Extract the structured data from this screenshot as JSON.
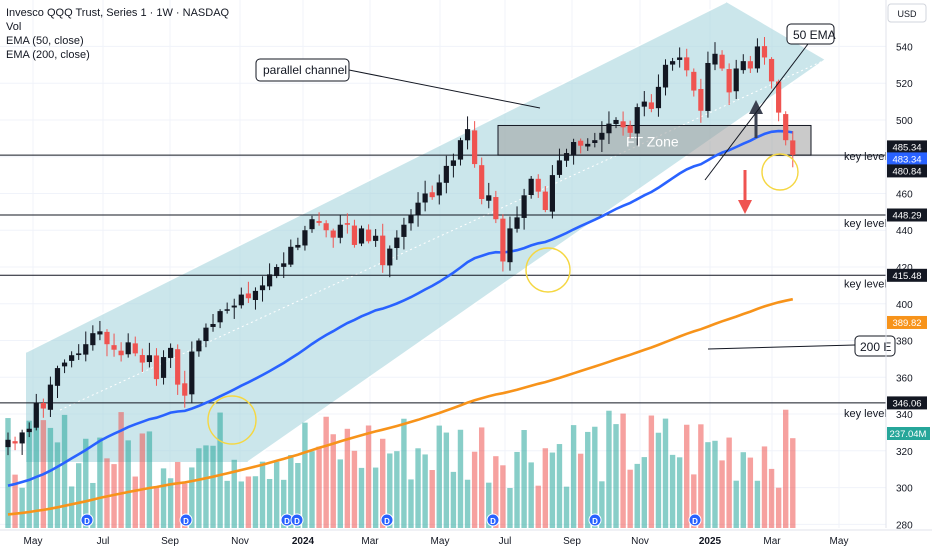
{
  "header": {
    "title": "Invesco QQQ Trust, Series 1 · 1W · NASDAQ",
    "vol_label": "Vol",
    "ema50_label": "EMA (50, close)",
    "ema200_label": "EMA (200, close)",
    "currency": "USD"
  },
  "annotations": {
    "parallel_channel": "parallel channel",
    "ema50": "50 EMA",
    "ema200": "200 E",
    "zone": "FT Zone",
    "key_level": "key level"
  },
  "colors": {
    "up": "#26a69a",
    "down": "#ef5350",
    "ema50": "#2962ff",
    "ema200": "#f7931a",
    "channel": "#a9d6dd",
    "background": "#ffffff"
  },
  "chart_data": {
    "type": "candlestick",
    "interval": "1W",
    "x_axis_labels": [
      "May",
      "Jul",
      "Sep",
      "Nov",
      "2024",
      "Mar",
      "May",
      "Jul",
      "Sep",
      "Nov",
      "2025",
      "Mar",
      "May"
    ],
    "y_axis_ticks": [
      280,
      300,
      320,
      340,
      360,
      380,
      400,
      420,
      440,
      460,
      480,
      500,
      520,
      540
    ],
    "ylim": [
      278,
      562
    ],
    "price_tags": [
      {
        "value": 485.34,
        "label": "485.34",
        "color": "#131722"
      },
      {
        "value": 483.34,
        "label": "483.34",
        "color": "#2962ff"
      },
      {
        "value": 480.84,
        "label": "480.84",
        "color": "#131722"
      },
      {
        "value": 448.29,
        "label": "448.29",
        "color": "#131722"
      },
      {
        "value": 415.48,
        "label": "415.48",
        "color": "#131722"
      },
      {
        "value": 389.82,
        "label": "389.82",
        "color": "#f7931a"
      },
      {
        "value": 346.06,
        "label": "346.06",
        "color": "#131722"
      }
    ],
    "volume_tag": "237.04M",
    "key_levels": [
      480.84,
      448.29,
      415.48,
      346.06
    ],
    "zone": [
      480.84,
      497
    ],
    "closes": [
      326,
      324,
      330,
      332,
      346,
      343,
      356,
      365,
      368,
      372,
      373,
      378,
      384,
      385,
      378,
      375,
      372,
      379,
      373,
      368,
      372,
      359,
      371,
      376,
      356,
      350,
      374,
      380,
      387,
      389,
      396,
      397,
      399,
      405,
      403,
      407,
      410,
      416,
      420,
      422,
      431,
      432,
      440,
      446,
      444,
      440,
      436,
      443,
      443,
      432,
      441,
      434,
      437,
      421,
      430,
      436,
      443,
      448,
      455,
      460,
      458,
      466,
      475,
      478,
      489,
      495,
      476,
      457,
      459,
      446,
      423,
      441,
      447,
      459,
      468,
      461,
      451,
      470,
      478,
      482,
      488,
      486,
      487,
      489,
      493,
      498,
      500,
      496,
      493,
      507,
      510,
      506,
      518,
      530,
      532,
      534,
      527,
      516,
      505,
      531,
      536,
      528,
      515,
      528,
      532,
      528,
      540,
      534,
      521,
      504,
      489,
      481
    ]
  },
  "ema_series": {
    "ema50_label_tag": "483.34",
    "ema200_label_tag": "389.82"
  }
}
